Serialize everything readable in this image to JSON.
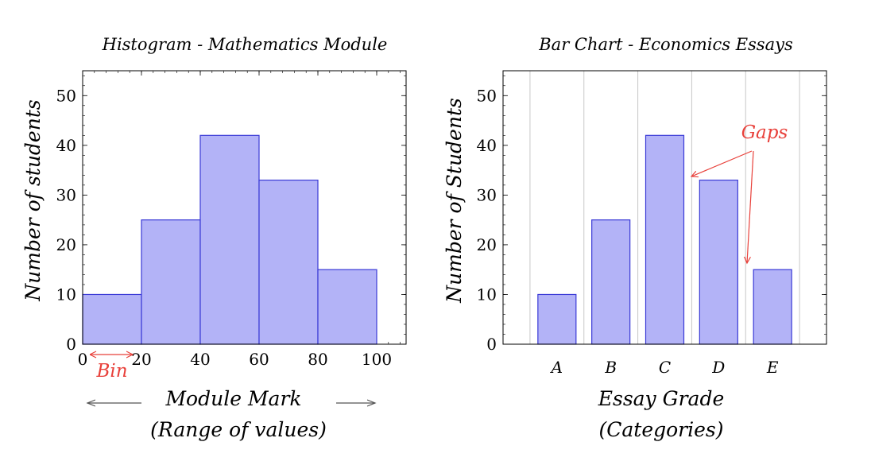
{
  "colors": {
    "bar_fill": "#b3b3f7",
    "bar_stroke": "#3a3ad6",
    "annotation": "#e8403a",
    "grid": "#c8c8c8"
  },
  "chart_data": [
    {
      "type": "bar",
      "title": "Histogram - Mathematics Module",
      "ylabel": "Number of students",
      "xlabel_line1": "Module Mark",
      "xlabel_line2": "(Range of values)",
      "bins": [
        {
          "from": 0,
          "to": 20,
          "value": 10
        },
        {
          "from": 20,
          "to": 40,
          "value": 25
        },
        {
          "from": 40,
          "to": 60,
          "value": 42
        },
        {
          "from": 60,
          "to": 80,
          "value": 33
        },
        {
          "from": 80,
          "to": 100,
          "value": 15
        }
      ],
      "xticks": [
        "0",
        "20",
        "40",
        "60",
        "80",
        "100"
      ],
      "yticks": [
        "0",
        "10",
        "20",
        "30",
        "40",
        "50"
      ],
      "xlim": [
        0,
        110
      ],
      "ylim": [
        0,
        55
      ],
      "annotation": "Bin"
    },
    {
      "type": "bar",
      "title": "Bar Chart - Economics Essays",
      "ylabel": "Number of Students",
      "xlabel_line1": "Essay Grade",
      "xlabel_line2": "(Categories)",
      "categories": [
        "A",
        "B",
        "C",
        "D",
        "E"
      ],
      "values": [
        10,
        25,
        42,
        33,
        15
      ],
      "yticks": [
        "0",
        "10",
        "20",
        "30",
        "40",
        "50"
      ],
      "ylim": [
        0,
        55
      ],
      "grid": "vertical",
      "annotation": "Gaps"
    }
  ]
}
